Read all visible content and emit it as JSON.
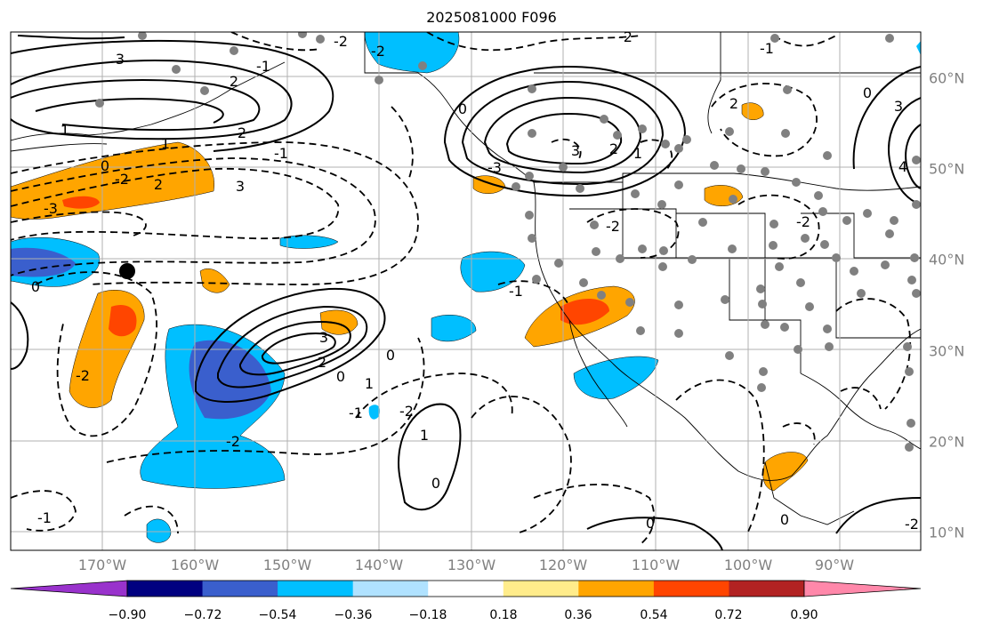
{
  "title": "2025081000 F096",
  "axes": {
    "lon_labels": [
      "170°W",
      "160°W",
      "150°W",
      "140°W",
      "130°W",
      "120°W",
      "110°W",
      "100°W",
      "90°W"
    ],
    "lat_labels": [
      "60°N",
      "50°N",
      "40°N",
      "30°N",
      "20°N",
      "10°N"
    ]
  },
  "colorbar": {
    "colors": [
      "#9932cc",
      "#000080",
      "#3a5fcd",
      "#00bfff",
      "#b0e2ff",
      "#ffffff",
      "#ffec8b",
      "#ffa500",
      "#ff4500",
      "#b22222",
      "#ff88aa"
    ],
    "tick_labels": [
      "−0.90",
      "−0.72",
      "−0.54",
      "−0.36",
      "−0.18",
      "0.18",
      "0.36",
      "0.54",
      "0.72",
      "0.90"
    ]
  },
  "contour_labels": [
    "1",
    "3",
    "1",
    "0",
    "-2",
    "2",
    "3",
    "-3",
    "-1",
    "2",
    "-1",
    "-2",
    "0",
    "-2",
    "2",
    "-1",
    "-2",
    "0",
    "1",
    "2",
    "0",
    "1",
    "-1",
    "3",
    "-3",
    "-2",
    "0",
    "-2",
    "-2",
    "0",
    "3",
    "-1",
    "-2",
    "2",
    "-1",
    "1",
    "0",
    "0",
    "2",
    "-2",
    "0",
    "4",
    "3",
    "-2"
  ],
  "colors": {
    "grid": "#b0b0b0",
    "label": "#808080",
    "station": "#808080",
    "marker": "#000000"
  }
}
